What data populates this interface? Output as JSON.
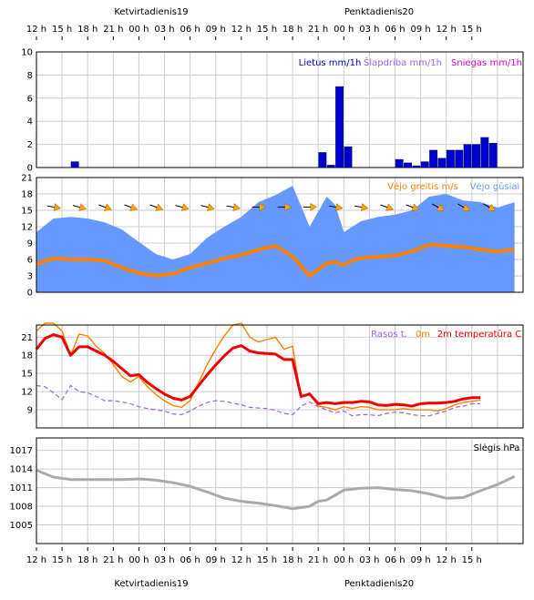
{
  "days": [
    "Ketvirtadienis19",
    "Penktadienis20"
  ],
  "time_ticks": [
    "12 h",
    "15 h",
    "18 h",
    "21 h",
    "00 h",
    "03 h",
    "06 h",
    "09 h",
    "12 h",
    "15 h",
    "18 h",
    "21 h",
    "00 h",
    "03 h",
    "06 h",
    "09 h",
    "12 h",
    "15 h"
  ],
  "colors": {
    "precip_rain": "#0000cc",
    "precip_sleet": "#9966dd",
    "precip_snow": "#dd00cc",
    "wind_speed": "#ff8000",
    "wind_gust_fill": "#6699ff",
    "wind_gust_label": "#6699ff",
    "arrow": "#ffa500",
    "dew_point": "#9966dd",
    "temp_0m": "#ff8000",
    "temp_2m": "#ee0000",
    "pressure": "#aaaaaa"
  },
  "chart_data": [
    {
      "type": "bar",
      "name": "precipitation",
      "legend": [
        "Lietus mm/1h",
        "Šlapdriba mm/1h",
        "Sniegas mm/1h"
      ],
      "ylim": [
        0,
        10
      ],
      "yticks": [
        0,
        2,
        4,
        6,
        8,
        10
      ],
      "hours": [
        4,
        33,
        34,
        35,
        36,
        42,
        43,
        44,
        45,
        46,
        47,
        48,
        49,
        50,
        51,
        52,
        53,
        54,
        55
      ],
      "rain": [
        0.5,
        1.3,
        0.2,
        7.0,
        1.8,
        0.7,
        0.4,
        0.15,
        0.5,
        1.5,
        0.8,
        1.5,
        1.5,
        2.0,
        2.0,
        2.6,
        2.1,
        0,
        0
      ]
    },
    {
      "type": "area",
      "name": "wind",
      "legend": [
        "Vėjo greitis m/s",
        "Vėjo gūsiai"
      ],
      "ylim": [
        0,
        21
      ],
      "yticks": [
        0,
        3,
        6,
        9,
        12,
        15,
        18,
        21
      ],
      "hours": [
        0,
        2,
        4,
        6,
        8,
        10,
        12,
        14,
        16,
        18,
        20,
        22,
        24,
        26,
        28,
        30,
        32,
        34,
        35,
        36,
        37,
        38,
        40,
        42,
        44,
        46,
        48,
        50,
        52,
        54,
        56
      ],
      "gusts": [
        11,
        13.5,
        13.8,
        13.5,
        12.8,
        11.5,
        9.2,
        7,
        6,
        7,
        10,
        12,
        13.8,
        16.5,
        17.8,
        19.5,
        12,
        17.5,
        16,
        11,
        12,
        13,
        13.8,
        14.2,
        15,
        17.5,
        18,
        16.8,
        16.5,
        15.5,
        16.5
      ],
      "speed": [
        5.2,
        6.2,
        6.0,
        6.0,
        5.8,
        4.5,
        3.5,
        3.0,
        3.4,
        4.5,
        5.3,
        6.2,
        6.8,
        7.8,
        8.5,
        6.5,
        3.0,
        5.3,
        5.5,
        5.0,
        5.8,
        6.3,
        6.5,
        6.7,
        7.5,
        8.7,
        8.5,
        8.3,
        7.8,
        7.5,
        7.8
      ],
      "arrow_hours": [
        2,
        5,
        8,
        11,
        14,
        17,
        20,
        23,
        26,
        29,
        32,
        35,
        38,
        41,
        44,
        47,
        50,
        53
      ],
      "arrow_dirs": [
        10,
        15,
        20,
        20,
        20,
        15,
        15,
        10,
        0,
        0,
        0,
        10,
        10,
        20,
        20,
        30,
        30,
        30
      ]
    },
    {
      "type": "line",
      "name": "temperature",
      "legend": [
        "Rasos t.",
        "0m",
        "2m temperatūra C"
      ],
      "ylim": [
        6,
        23
      ],
      "yticks": [
        9,
        12,
        15,
        18,
        21
      ],
      "hours": [
        0,
        1,
        2,
        3,
        4,
        5,
        6,
        7,
        8,
        9,
        10,
        11,
        12,
        13,
        14,
        15,
        16,
        17,
        18,
        19,
        20,
        21,
        22,
        23,
        24,
        25,
        26,
        27,
        28,
        29,
        30,
        31,
        32,
        33,
        34,
        35,
        36,
        37,
        38,
        39,
        40,
        41,
        42,
        43,
        44,
        45,
        46,
        47,
        48,
        49,
        50,
        51,
        52,
        53,
        54,
        55,
        56
      ],
      "t2m": [
        19,
        20.8,
        21.4,
        21.0,
        18.0,
        19.4,
        19.4,
        18.7,
        18.0,
        17.0,
        15.8,
        14.6,
        14.8,
        13.5,
        12.5,
        11.6,
        10.9,
        10.6,
        11.2,
        13.0,
        14.8,
        16.4,
        17.9,
        19.2,
        19.6,
        18.7,
        18.4,
        18.3,
        18.2,
        17.3,
        17.3,
        11.2,
        11.6,
        10.0,
        10.2,
        10.0,
        10.2,
        10.2,
        10.4,
        10.3,
        9.8,
        9.7,
        9.9,
        9.8,
        9.6,
        10.0,
        10.1,
        10.1,
        10.2,
        10.4,
        10.8,
        11.0,
        11.0
      ],
      "t0m": [
        22,
        24,
        23.5,
        22.0,
        18.0,
        21.5,
        21.2,
        19.5,
        18.3,
        16.5,
        14.5,
        13.6,
        14.5,
        12.8,
        11.5,
        10.5,
        9.7,
        9.4,
        10.5,
        13.5,
        16.5,
        19.0,
        21.2,
        23.0,
        23.5,
        21.0,
        20.2,
        20.6,
        21.0,
        19.0,
        19.5,
        11.0,
        11.8,
        9.6,
        9.4,
        9.0,
        9.5,
        9.2,
        9.5,
        9.4,
        9.0,
        9.0,
        9.0,
        9.2,
        9.0,
        9.0,
        9.0,
        8.8,
        9.2,
        9.8,
        10.2,
        10.4,
        10.6
      ],
      "dew": [
        13,
        12.8,
        11.8,
        10.7,
        13.0,
        12.0,
        11.8,
        11.2,
        10.5,
        10.5,
        10.3,
        10.0,
        9.5,
        9.2,
        9.0,
        8.8,
        8.3,
        8.2,
        8.8,
        9.6,
        10.2,
        10.5,
        10.4,
        10.1,
        9.8,
        9.4,
        9.3,
        9.2,
        8.9,
        8.4,
        8.2,
        9.6,
        10.3,
        9.5,
        9.0,
        8.5,
        8.8,
        8.0,
        8.2,
        8.2,
        8.0,
        8.4,
        8.6,
        8.5,
        8.2,
        8.0,
        8.0,
        8.4,
        8.8,
        9.4,
        9.6,
        10.0,
        10.0
      ]
    },
    {
      "type": "line",
      "name": "pressure",
      "legend": [
        "Slėgis hPa"
      ],
      "ylim": [
        1002,
        1019
      ],
      "yticks": [
        1005,
        1008,
        1011,
        1014,
        1017
      ],
      "hours": [
        0,
        2,
        4,
        6,
        8,
        10,
        12,
        14,
        16,
        18,
        20,
        22,
        24,
        26,
        28,
        30,
        32,
        33,
        34,
        35,
        36,
        38,
        40,
        42,
        44,
        46,
        48,
        50,
        52,
        54,
        56
      ],
      "values": [
        1013.8,
        1012.7,
        1012.3,
        1012.3,
        1012.3,
        1012.3,
        1012.4,
        1012.2,
        1011.8,
        1011.2,
        1010.3,
        1009.3,
        1008.8,
        1008.5,
        1008.1,
        1007.6,
        1008.0,
        1008.8,
        1009.0,
        1009.8,
        1010.6,
        1010.9,
        1011.0,
        1010.7,
        1010.5,
        1010.0,
        1009.3,
        1009.4,
        1010.5,
        1011.5,
        1012.8
      ]
    }
  ]
}
